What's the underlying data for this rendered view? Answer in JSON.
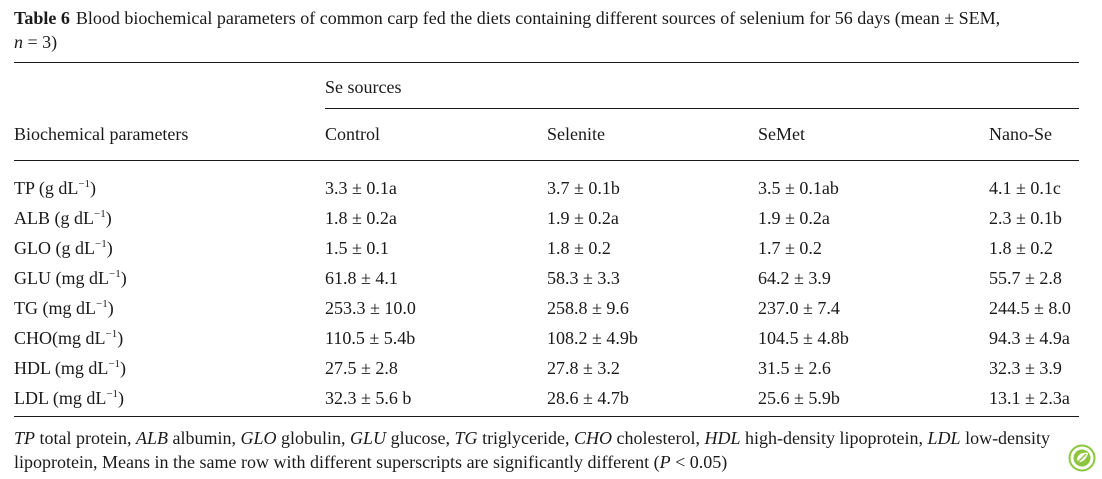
{
  "caption": {
    "label": "Table 6",
    "text": "Blood biochemical parameters of common carp fed the diets containing different sources of selenium for 56 days (mean ± SEM,",
    "n_italic": "n",
    "n_value": " = 3)"
  },
  "table": {
    "group_header": "Se sources",
    "row_header": "Biochemical parameters",
    "columns": [
      "Control",
      "Selenite",
      "SeMet",
      "Nano-Se"
    ],
    "rows": [
      {
        "name": "TP (g dL",
        "sup": "−1",
        "close": ")",
        "values": [
          "3.3 ± 0.1a",
          "3.7 ± 0.1b",
          "3.5 ± 0.1ab",
          "4.1 ± 0.1c"
        ]
      },
      {
        "name": "ALB (g dL",
        "sup": "−1",
        "close": ")",
        "values": [
          "1.8 ± 0.2a",
          "1.9 ± 0.2a",
          "1.9 ± 0.2a",
          "2.3 ± 0.1b"
        ]
      },
      {
        "name": "GLO (g dL",
        "sup": "−1",
        "close": ")",
        "values": [
          "1.5 ± 0.1",
          "1.8 ± 0.2",
          "1.7 ± 0.2",
          "1.8 ± 0.2"
        ]
      },
      {
        "name": "GLU (mg dL",
        "sup": "−1",
        "close": ")",
        "values": [
          "61.8 ± 4.1",
          "58.3 ± 3.3",
          "64.2 ± 3.9",
          "55.7 ± 2.8"
        ]
      },
      {
        "name": "TG (mg dL",
        "sup": "−1",
        "close": ")",
        "values": [
          "253.3 ± 10.0",
          "258.8 ± 9.6",
          "237.0 ± 7.4",
          "244.5 ± 8.0"
        ]
      },
      {
        "name": "CHO(mg dL",
        "sup": "−1",
        "close": ")",
        "values": [
          "110.5 ± 5.4b",
          "108.2 ± 4.9b",
          "104.5 ± 4.8b",
          "94.3 ± 4.9a"
        ]
      },
      {
        "name": "HDL (mg dL",
        "sup": "−1",
        "close": ")",
        "values": [
          "27.5 ± 2.8",
          "27.8 ± 3.2",
          "31.5 ± 2.6",
          "32.3 ± 3.9"
        ]
      },
      {
        "name": "LDL (mg dL",
        "sup": "−1",
        "close": ")",
        "values": [
          "32.3 ± 5.6 b",
          "28.6 ± 4.7b",
          "25.6 ± 5.9b",
          "13.1 ± 2.3a"
        ]
      }
    ]
  },
  "footnote": {
    "parts": [
      {
        "abbr": "TP",
        "text": " total protein, "
      },
      {
        "abbr": "ALB",
        "text": " albumin, "
      },
      {
        "abbr": "GLO",
        "text": " globulin, "
      },
      {
        "abbr": "GLU",
        "text": " glucose, "
      },
      {
        "abbr": "TG",
        "text": " triglyceride, "
      },
      {
        "abbr": "CHO",
        "text": " cholesterol, "
      },
      {
        "abbr": "HDL",
        "text": " high-density lipoprotein, "
      },
      {
        "abbr": "LDL",
        "text": " low-density lipoprotein, Means in the same row with different superscripts are significantly different ("
      },
      {
        "abbr": "P",
        "text": " < 0.05)"
      }
    ]
  },
  "badge": {
    "icon": "leaf-badge-icon",
    "color": "#8cc63f"
  }
}
